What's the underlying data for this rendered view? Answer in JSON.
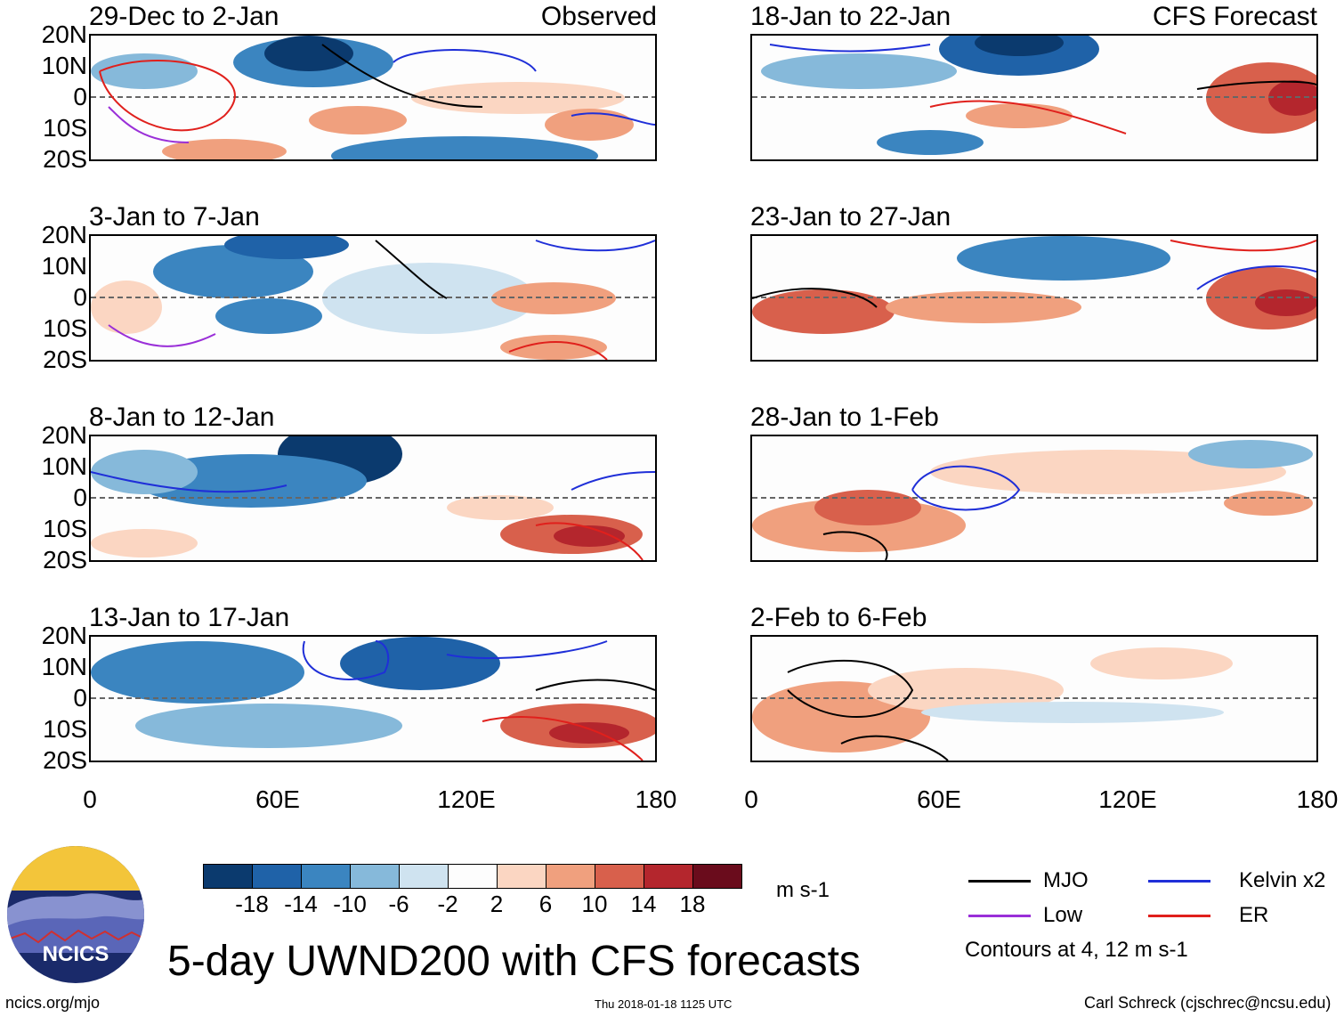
{
  "main_title": "5-day UWND200 with CFS forecasts",
  "panels_left": [
    {
      "title": "29-Dec to 2-Jan",
      "tag": "Observed"
    },
    {
      "title": "3-Jan to 7-Jan",
      "tag": ""
    },
    {
      "title": "8-Jan to 12-Jan",
      "tag": ""
    },
    {
      "title": "13-Jan to 17-Jan",
      "tag": ""
    }
  ],
  "panels_right": [
    {
      "title": "18-Jan to 22-Jan",
      "tag": "CFS Forecast"
    },
    {
      "title": "23-Jan to 27-Jan",
      "tag": ""
    },
    {
      "title": "28-Jan to 1-Feb",
      "tag": ""
    },
    {
      "title": "2-Feb to 6-Feb",
      "tag": ""
    }
  ],
  "lat_labels": [
    "20N",
    "10N",
    "0",
    "10S",
    "20S"
  ],
  "lon_labels": [
    "0",
    "60E",
    "120E",
    "180"
  ],
  "colorbar": {
    "colors": [
      "#0b3a6e",
      "#1f62a8",
      "#3b85c0",
      "#86b9da",
      "#cfe3f0",
      "#fdfdfd",
      "#fbd6c2",
      "#f0a07e",
      "#d8604c",
      "#b4262d",
      "#6a0c1c"
    ],
    "ticks": [
      "-18",
      "-14",
      "-10",
      "-6",
      "-2",
      "2",
      "6",
      "10",
      "14",
      "18"
    ],
    "units": "m s-1"
  },
  "legend": {
    "items": [
      {
        "label": "MJO",
        "color": "#000000"
      },
      {
        "label": "Kelvin x2",
        "color": "#1f2fd8"
      },
      {
        "label": "Low",
        "color": "#9a2fd8"
      },
      {
        "label": "ER",
        "color": "#e0201c"
      }
    ],
    "note": "Contours at 4, 12 m s-1"
  },
  "logo_text": "NCICS",
  "footer": {
    "url": "ncics.org/mjo",
    "timestamp": "Thu 2018-01-18 1125 UTC",
    "author": "Carl Schreck (cjschrec@ncsu.edu)"
  }
}
